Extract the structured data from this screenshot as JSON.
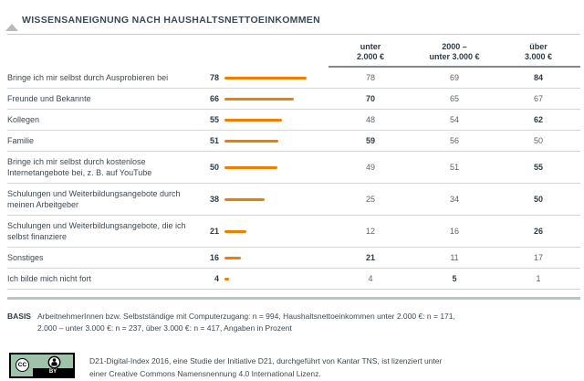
{
  "title": "WISSENSANEIGNUNG NACH HAUSHALTSNETTOEINKOMMEN",
  "table": {
    "columns": [
      {
        "line1": "unter",
        "line2": "2.000 €"
      },
      {
        "line1": "2000 –",
        "line2": "unter 3.000 €"
      },
      {
        "line1": "über",
        "line2": "3.000 €"
      }
    ],
    "rows": [
      {
        "label": "Bringe ich mir selbst durch Ausprobieren bei",
        "total": 78,
        "values": [
          78,
          69,
          84
        ],
        "bold_index": 2
      },
      {
        "label": "Freunde und Bekannte",
        "total": 66,
        "values": [
          70,
          65,
          67
        ],
        "bold_index": 0
      },
      {
        "label": "Kollegen",
        "total": 55,
        "values": [
          48,
          54,
          62
        ],
        "bold_index": 2
      },
      {
        "label": "Familie",
        "total": 51,
        "values": [
          59,
          56,
          50
        ],
        "bold_index": 0
      },
      {
        "label": "Bringe ich mir selbst durch kostenlose Internetangebote bei, z. B. auf YouTube",
        "total": 50,
        "values": [
          49,
          51,
          55
        ],
        "bold_index": 2
      },
      {
        "label": "Schulungen und Weiterbildungsangebote durch meinen Arbeitgeber",
        "total": 38,
        "values": [
          25,
          34,
          50
        ],
        "bold_index": 2
      },
      {
        "label": "Schulungen und Weiterbildungsangebote, die ich selbst finanziere",
        "total": 21,
        "values": [
          12,
          16,
          26
        ],
        "bold_index": 2
      },
      {
        "label": "Sonstiges",
        "total": 16,
        "values": [
          21,
          11,
          17
        ],
        "bold_index": 0
      },
      {
        "label": "Ich bilde mich nicht fort",
        "total": 4,
        "values": [
          4,
          5,
          1
        ],
        "bold_index": 1
      }
    ]
  },
  "basis": {
    "label": "BASIS",
    "line1": "ArbeitnehmerInnen bzw. Selbstständige mit Computerzugang: n = 994, Haushaltsnettoeinkommen unter 2.000 €: n = 171,",
    "line2": "2.000 – unter 3.000 €: n = 237, über 3.000 €: n = 417, Angaben in Prozent"
  },
  "footer": {
    "badge_cc": "CC",
    "badge_by": "BY",
    "line1": "D21-Digital-Index 2016, eine Studie der Initiative D21, durchgeführt von Kantar TNS, ist lizenziert unter",
    "line2": "einer Creative Commons Namensnennung 4.0 International Lizenz."
  },
  "colors": {
    "bar_orange": "#ee7f00",
    "text_dark": "#2f3b44",
    "text_label": "#3e4a52",
    "text_muted": "#5c646b",
    "row_separator": "#d2d5d7",
    "header_line": "#85888b",
    "thick_line": "#bac6c1",
    "cc_badge_green": "#9fc2ab"
  },
  "chart_data": {
    "type": "bar",
    "orientation": "horizontal",
    "title": "WISSENSANEIGNUNG NACH HAUSHALTSNETTOEINKOMMEN",
    "categories": [
      "Bringe ich mir selbst durch Ausprobieren bei",
      "Freunde und Bekannte",
      "Kollegen",
      "Familie",
      "Bringe ich mir selbst durch kostenlose Internetangebote bei, z. B. auf YouTube",
      "Schulungen und Weiterbildungsangebote durch meinen Arbeitgeber",
      "Schulungen und Weiterbildungsangebote, die ich selbst finanziere",
      "Sonstiges",
      "Ich bilde mich nicht fort"
    ],
    "values": [
      78,
      66,
      55,
      51,
      50,
      38,
      21,
      16,
      4
    ],
    "series": [
      {
        "name": "unter 2.000 €",
        "values": [
          78,
          70,
          48,
          59,
          49,
          25,
          12,
          21,
          4
        ]
      },
      {
        "name": "2000 – unter 3.000 €",
        "values": [
          69,
          65,
          54,
          56,
          51,
          34,
          16,
          11,
          5
        ]
      },
      {
        "name": "über 3.000 €",
        "values": [
          84,
          67,
          62,
          50,
          55,
          50,
          26,
          17,
          1
        ]
      }
    ],
    "unit": "Prozent",
    "xlim": [
      0,
      100
    ],
    "grid": false,
    "legend_position": "top"
  }
}
